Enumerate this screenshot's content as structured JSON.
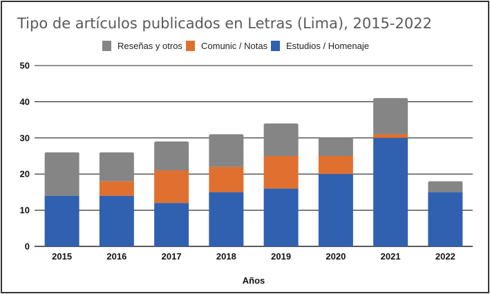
{
  "chart_data": {
    "type": "bar",
    "stacked": true,
    "title": "Tipo de artículos publicados en Letras (Lima), 2015-2022",
    "xlabel": "Años",
    "ylabel": "",
    "ylim": [
      0,
      50
    ],
    "yticks": [
      0,
      10,
      20,
      30,
      40,
      50
    ],
    "grid": true,
    "legend_position": "top-center",
    "categories": [
      "2015",
      "2016",
      "2017",
      "2018",
      "2019",
      "2020",
      "2021",
      "2022"
    ],
    "series": [
      {
        "name": "Estudios / Homenaje",
        "color": "#3060b0",
        "values": [
          14,
          14,
          12,
          15,
          16,
          20,
          30,
          15
        ]
      },
      {
        "name": "Comunic / Notas",
        "color": "#e07030",
        "values": [
          0,
          4,
          9,
          7,
          9,
          5,
          1,
          0
        ]
      },
      {
        "name": "Reseñas y otros",
        "color": "#858585",
        "values": [
          12,
          8,
          8,
          9,
          9,
          5,
          10,
          3
        ]
      }
    ],
    "legend_order": [
      "Reseñas y otros",
      "Comunic / Notas",
      "Estudios / Homenaje"
    ]
  }
}
